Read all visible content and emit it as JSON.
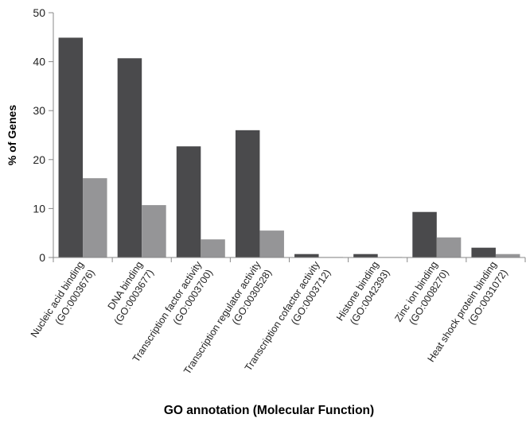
{
  "chart_data": {
    "type": "bar",
    "xlabel": "GO annotation (Molecular Function)",
    "ylabel": "% of Genes",
    "ylim": [
      0,
      50
    ],
    "yticks": [
      "0",
      "10",
      "20",
      "30",
      "40",
      "50"
    ],
    "grid": false,
    "legend": "none",
    "categories": [
      {
        "line1": "Nucleic acid binding",
        "line2": "(GO:0003676)"
      },
      {
        "line1": "DNA binding",
        "line2": "(GO:0003677)"
      },
      {
        "line1": "Transcription factor activity",
        "line2": "(GO:0003700)"
      },
      {
        "line1": "Transcription regulator activity",
        "line2": "(GO:0030528)"
      },
      {
        "line1": "Transcription cofactor activity",
        "line2": "(GO:0003712)"
      },
      {
        "line1": "Histone binding",
        "line2": "(GO:0042393)"
      },
      {
        "line1": "Zinc ion binding",
        "line2": "(GO:0008270)"
      },
      {
        "line1": "Heat shock protein binding",
        "line2": "(GO:0031072)"
      }
    ],
    "series": [
      {
        "color": "#4a4a4c",
        "values": [
          44.9,
          40.7,
          22.7,
          26.0,
          0.7,
          0.7,
          9.3,
          2.0
        ]
      },
      {
        "color": "#959597",
        "values": [
          16.2,
          10.7,
          3.7,
          5.5,
          0.1,
          0.1,
          4.1,
          0.7
        ]
      }
    ]
  }
}
